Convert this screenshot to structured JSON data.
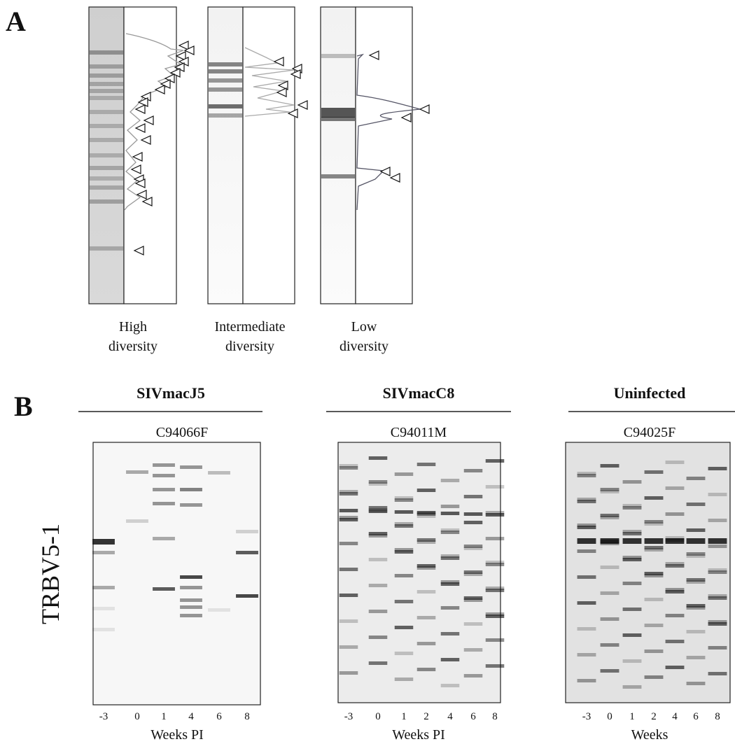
{
  "panel_a": {
    "label": "A",
    "gels": [
      {
        "caption": [
          "High",
          "diversity"
        ]
      },
      {
        "caption": [
          "Intermediate",
          "diversity"
        ]
      },
      {
        "caption": [
          "Low",
          "diversity"
        ]
      }
    ]
  },
  "panel_b": {
    "label": "B",
    "gene": "TRBV5-1",
    "groups": [
      {
        "title": "SIVmacJ5",
        "animal": "C94066F",
        "lanes": [
          "-3",
          "0",
          "1",
          "4",
          "6",
          "8"
        ],
        "xlabel": "Weeks PI"
      },
      {
        "title": "SIVmacC8",
        "animal": "C94011M",
        "lanes": [
          "-3",
          "0",
          "1",
          "2",
          "4",
          "6",
          "8"
        ],
        "xlabel": "Weeks PI"
      },
      {
        "title": "Uninfected",
        "animal": "C94025F",
        "lanes": [
          "-3",
          "0",
          "1",
          "2",
          "4",
          "6",
          "8"
        ],
        "xlabel": "Weeks"
      }
    ]
  }
}
